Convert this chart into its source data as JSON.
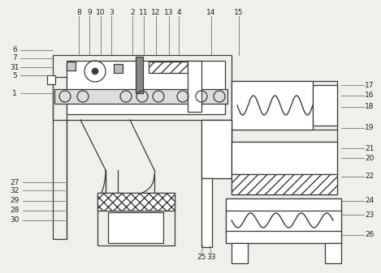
{
  "bg_color": "#f0f0eb",
  "lc": "#3a3a3a",
  "lc_leader": "#666666",
  "lc_label": "#222222",
  "fig_width": 4.69,
  "fig_height": 3.37,
  "dpi": 100,
  "top_labels": {
    "texts": [
      "8",
      "9",
      "10",
      "3",
      "2",
      "11",
      "12",
      "13",
      "4",
      "14",
      "15"
    ],
    "x": [
      97,
      110,
      125,
      138,
      163,
      177,
      192,
      208,
      221,
      260,
      295
    ],
    "y": 20
  },
  "left_labels": {
    "texts": [
      "6",
      "7",
      "31",
      "5",
      "1"
    ],
    "y": [
      62,
      72,
      83,
      93,
      115
    ]
  },
  "right_labels": {
    "texts": [
      "17",
      "16",
      "18",
      "19",
      "21",
      "20",
      "22",
      "24",
      "23",
      "26"
    ],
    "y": [
      132,
      142,
      153,
      165,
      195,
      207,
      218,
      238,
      252,
      278
    ]
  },
  "bottom_labels": {
    "texts": [
      "27",
      "32",
      "29",
      "28",
      "30",
      "25",
      "33"
    ],
    "x": [
      18,
      18,
      18,
      18,
      18,
      215,
      228
    ],
    "y": [
      228,
      237,
      248,
      260,
      270,
      308,
      308
    ]
  }
}
